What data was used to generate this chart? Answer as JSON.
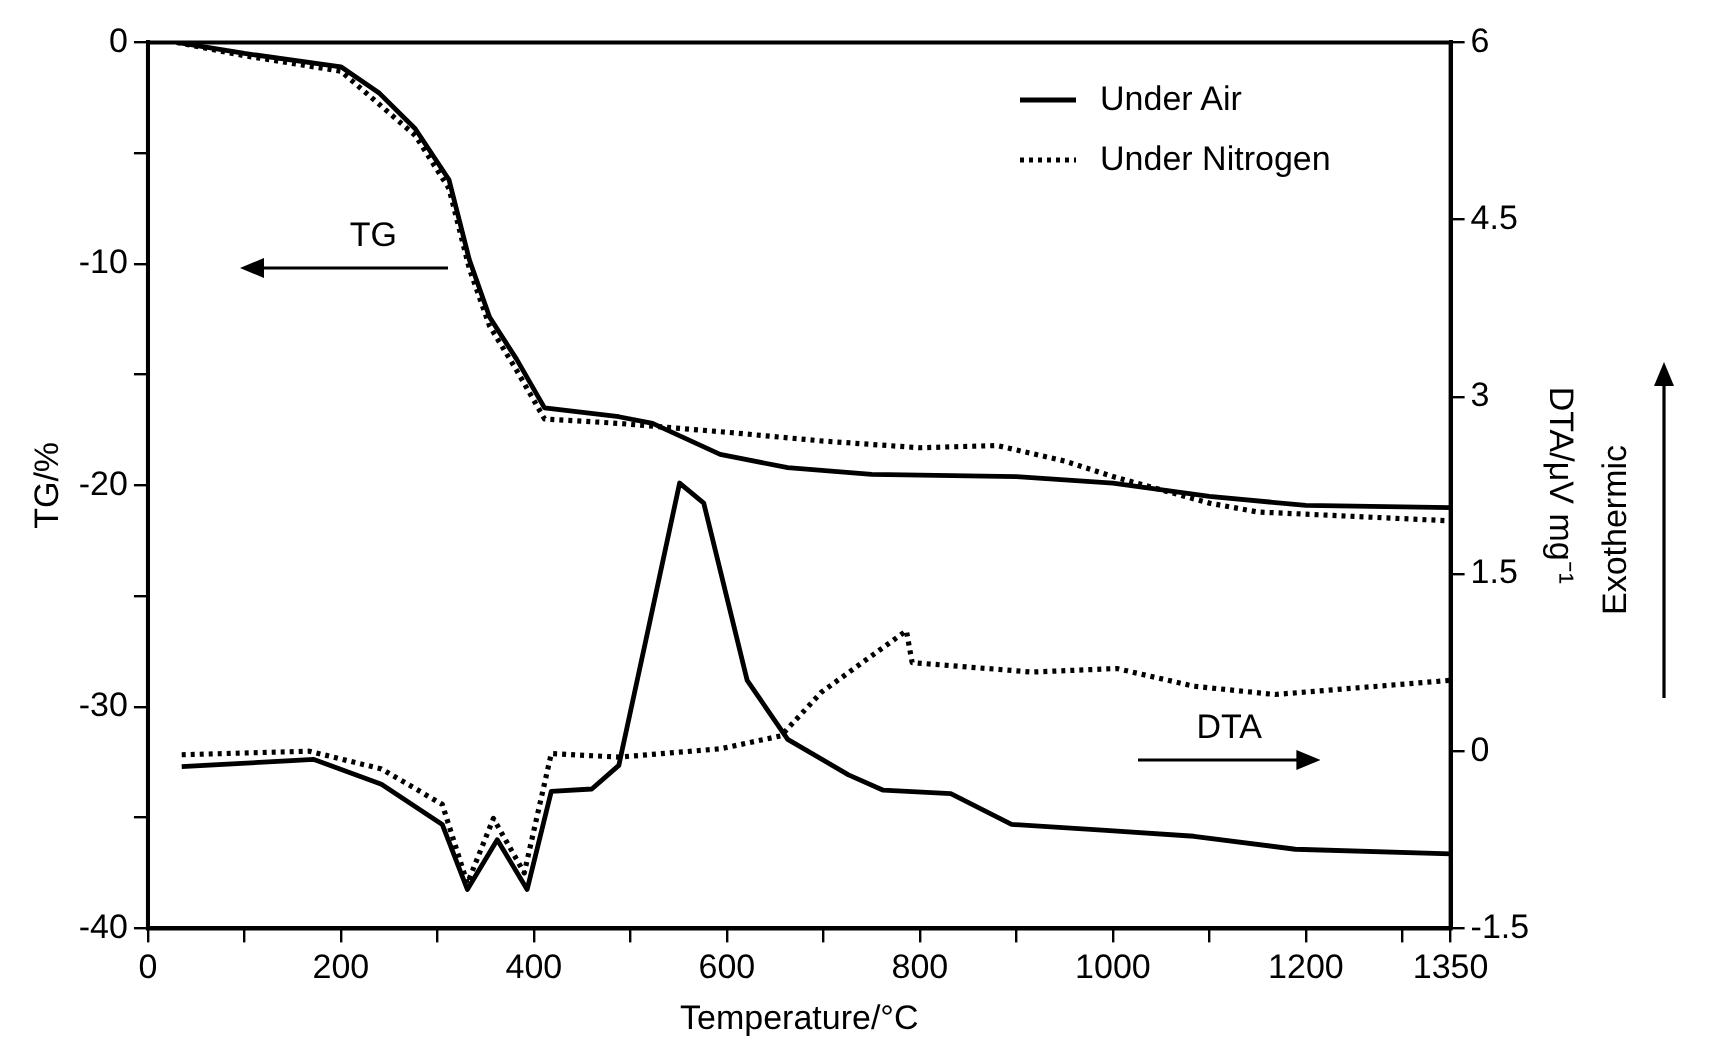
{
  "chart_data": {
    "type": "line",
    "xlabel": "Temperature/°C",
    "ylabel": "TG/%",
    "y2label": "DTA/μV mg⁻¹",
    "annotations": [
      "TG",
      "DTA",
      "Exothermic"
    ],
    "xlim": [
      0,
      1350
    ],
    "xticks": [
      0,
      {
        "value": 100,
        "label": null
      },
      200,
      {
        "value": 300,
        "label": null
      },
      400,
      {
        "value": 500,
        "label": null
      },
      600,
      {
        "value": 700,
        "label": null
      },
      800,
      {
        "value": 900,
        "label": null
      },
      1000,
      {
        "value": 1100,
        "label": null
      },
      1200,
      {
        "value": 1300,
        "label": null
      },
      1350
    ],
    "ylim": [
      -40,
      0
    ],
    "yticks": [
      -40,
      {
        "value": -35,
        "label": null
      },
      -30,
      {
        "value": -25,
        "label": null
      },
      -20,
      {
        "value": -15,
        "label": null
      },
      -10,
      {
        "value": -5,
        "label": null
      },
      0
    ],
    "y2lim": [
      -1.5,
      6
    ],
    "y2ticks": [
      -1.5,
      0,
      1.5,
      3,
      4.5,
      6
    ],
    "grid": false,
    "legend": "top right",
    "marker": "none",
    "series": [
      {
        "name": "Under Air",
        "color": "#000000",
        "line_style": "solid",
        "x": [
          30,
          100,
          200,
          240,
          277,
          312,
          333,
          354,
          382,
          411,
          488,
          523,
          593,
          663,
          750,
          900,
          1000,
          1100,
          1200,
          1350
        ],
        "values": [
          0,
          -0.5,
          -1.1,
          -2.3,
          -3.9,
          -6.2,
          -9.8,
          -12.4,
          -14.3,
          -16.5,
          -16.9,
          -17.2,
          -18.6,
          -19.2,
          -19.5,
          -19.6,
          -19.9,
          -20.5,
          -20.9,
          -21.0
        ]
      },
      {
        "name": "Under Nitrogen",
        "color": "#000000",
        "line_style": "dotted",
        "x": [
          30,
          100,
          200,
          277,
          312,
          333,
          354,
          382,
          411,
          488,
          600,
          700,
          800,
          880,
          950,
          1000,
          1100,
          1150,
          1350
        ],
        "values": [
          0,
          -0.6,
          -1.3,
          -4.2,
          -6.6,
          -10.2,
          -12.8,
          -14.8,
          -17.0,
          -17.2,
          -17.6,
          -18.0,
          -18.3,
          -18.2,
          -18.9,
          -19.6,
          -20.8,
          -21.2,
          -21.6
        ]
      },
      {
        "color": "#000000",
        "line_style": "solid",
        "axis": "y2",
        "x": [
          35,
          172,
          242,
          305,
          331,
          362,
          393,
          418,
          460,
          488,
          516,
          551,
          576,
          621,
          663,
          726,
          762,
          832,
          895,
          993,
          1084,
          1189,
          1350
        ],
        "values": [
          -0.13,
          -0.07,
          -0.28,
          -0.62,
          -1.17,
          -0.75,
          -1.17,
          -0.34,
          -0.32,
          -0.12,
          0.94,
          2.27,
          2.1,
          0.6,
          0.1,
          -0.2,
          -0.33,
          -0.36,
          -0.62,
          -0.67,
          -0.72,
          -0.83,
          -0.87
        ]
      },
      {
        "color": "#000000",
        "line_style": "dotted",
        "axis": "y2",
        "x": [
          35,
          167,
          242,
          305,
          331,
          358,
          390,
          418,
          488,
          593,
          656,
          698,
          786,
          792,
          916,
          1004,
          1084,
          1168,
          1350
        ],
        "values": [
          -0.03,
          0.0,
          -0.15,
          -0.45,
          -1.12,
          -0.57,
          -1.03,
          -0.02,
          -0.05,
          0.02,
          0.13,
          0.5,
          1.02,
          0.75,
          0.67,
          0.7,
          0.55,
          0.48,
          0.6
        ]
      }
    ]
  }
}
